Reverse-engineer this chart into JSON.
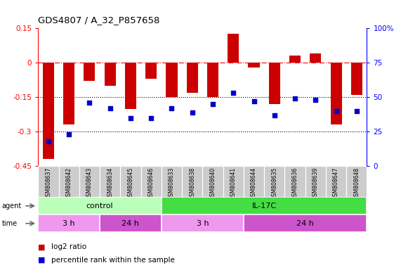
{
  "title": "GDS4807 / A_32_P857658",
  "samples": [
    "GSM808637",
    "GSM808642",
    "GSM808643",
    "GSM808634",
    "GSM808645",
    "GSM808646",
    "GSM808633",
    "GSM808638",
    "GSM808640",
    "GSM808641",
    "GSM808644",
    "GSM808635",
    "GSM808636",
    "GSM808639",
    "GSM808647",
    "GSM808648"
  ],
  "log2_ratio": [
    -0.42,
    -0.27,
    -0.08,
    -0.1,
    -0.2,
    -0.07,
    -0.15,
    -0.13,
    -0.15,
    0.125,
    -0.02,
    -0.18,
    0.03,
    0.04,
    -0.27,
    -0.14
  ],
  "percentile": [
    18,
    23,
    46,
    42,
    35,
    35,
    42,
    39,
    45,
    53,
    47,
    37,
    49,
    48,
    40,
    40
  ],
  "ylim_left": [
    -0.45,
    0.15
  ],
  "ylim_right": [
    0,
    100
  ],
  "yticks_left": [
    -0.45,
    -0.3,
    -0.15,
    0,
    0.15
  ],
  "yticks_right": [
    0,
    25,
    50,
    75,
    100
  ],
  "ytick_left_labels": [
    "-0.45",
    "-0.3",
    "-0.15",
    "0",
    "0.15"
  ],
  "ytick_right_labels": [
    "0",
    "25",
    "50",
    "75",
    "100%"
  ],
  "hline_red": 0.0,
  "hline_black1": -0.15,
  "hline_black2": -0.3,
  "bar_color": "#cc0000",
  "dot_color": "#0000cc",
  "agent_groups": [
    {
      "label": "control",
      "start": 0,
      "end": 6,
      "color": "#bbffbb"
    },
    {
      "label": "IL-17C",
      "start": 6,
      "end": 16,
      "color": "#44dd44"
    }
  ],
  "time_groups": [
    {
      "label": "3 h",
      "start": 0,
      "end": 3,
      "color": "#ee99ee"
    },
    {
      "label": "24 h",
      "start": 3,
      "end": 6,
      "color": "#cc55cc"
    },
    {
      "label": "3 h",
      "start": 6,
      "end": 10,
      "color": "#ee99ee"
    },
    {
      "label": "24 h",
      "start": 10,
      "end": 16,
      "color": "#cc55cc"
    }
  ],
  "legend_red_label": "log2 ratio",
  "legend_blue_label": "percentile rank within the sample",
  "legend_red_color": "#cc0000",
  "legend_blue_color": "#0000cc",
  "bg_color": "#ffffff",
  "plot_bg": "#ffffff",
  "axes_bg": "#cccccc"
}
